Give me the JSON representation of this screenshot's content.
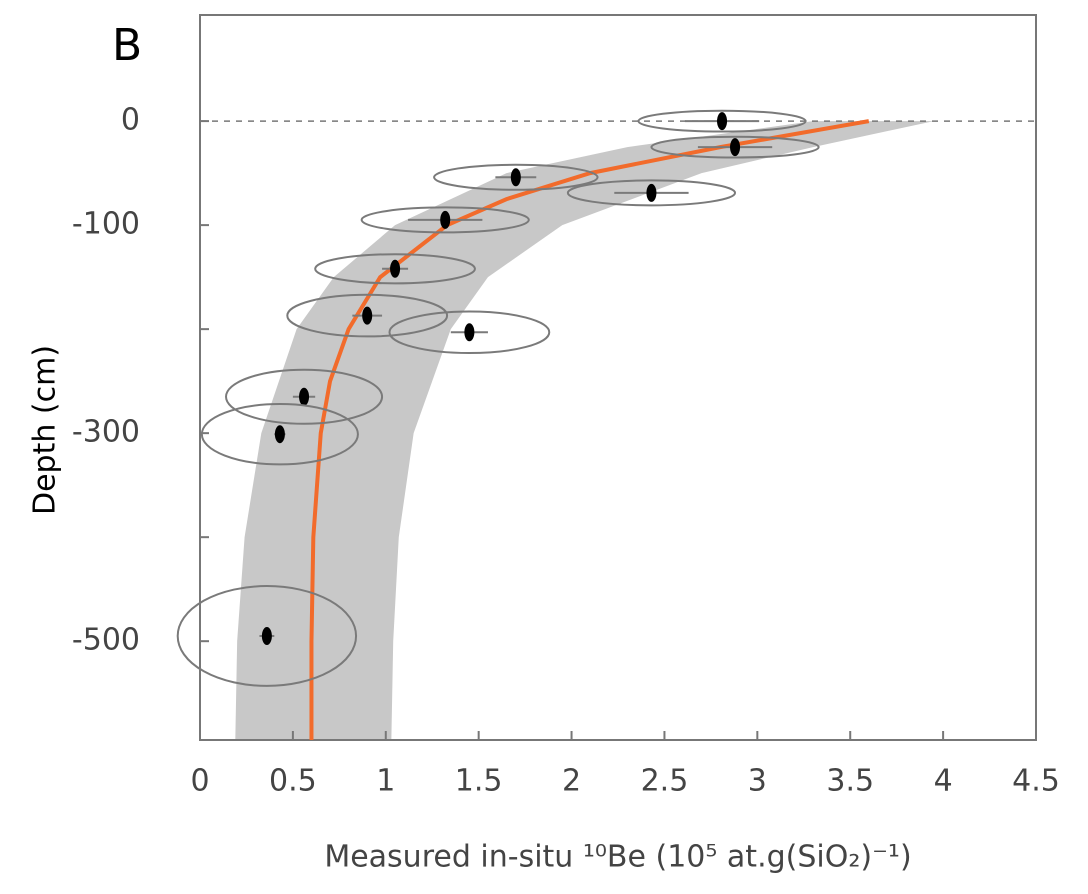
{
  "chart_data": {
    "type": "scatter",
    "title": "B",
    "xlabel": "Measured in-situ ¹⁰Be (10⁵ at.g(SiO₂)⁻¹)",
    "ylabel": "Depth (cm)",
    "xlim": [
      0,
      4.5
    ],
    "ylim": [
      -595,
      102
    ],
    "xticks": [
      0,
      0.5,
      1,
      1.5,
      2,
      2.5,
      3,
      3.5,
      4,
      4.5
    ],
    "yticks": [
      0,
      -100,
      -300,
      -500
    ],
    "yticks_minor": [
      -200,
      -400
    ],
    "points": {
      "x": [
        2.81,
        2.88,
        1.7,
        2.43,
        1.32,
        1.05,
        0.9,
        1.45,
        0.56,
        0.43,
        0.36
      ],
      "y": [
        0,
        -25,
        -54,
        -69,
        -95,
        -142,
        -187,
        -203,
        -265,
        -301,
        -495
      ],
      "x_err": [
        0.45,
        0.45,
        0.44,
        0.45,
        0.45,
        0.43,
        0.43,
        0.43,
        0.42,
        0.42,
        0.48
      ],
      "y_err": [
        10,
        10,
        12,
        12,
        12,
        14,
        20,
        20,
        26,
        29,
        48
      ],
      "x_bar": [
        0.2,
        0.2,
        0.11,
        0.2,
        0.2,
        0.07,
        0.08,
        0.1,
        0.06,
        0.03,
        0.04
      ],
      "color": "#000000",
      "ellipse_color": "#7a7a7a"
    },
    "fit": {
      "depth": [
        0,
        -25,
        -50,
        -75,
        -100,
        -150,
        -200,
        -250,
        -300,
        -400,
        -500,
        -595
      ],
      "x": [
        3.6,
        2.8,
        2.1,
        1.65,
        1.33,
        0.97,
        0.8,
        0.7,
        0.65,
        0.61,
        0.6,
        0.6
      ],
      "color": "#f26b2b"
    },
    "band": {
      "depth": [
        0,
        -25,
        -50,
        -100,
        -150,
        -200,
        -300,
        -400,
        -500,
        -595
      ],
      "lower": [
        3.3,
        2.3,
        1.65,
        1.05,
        0.72,
        0.52,
        0.33,
        0.24,
        0.2,
        0.19
      ],
      "upper": [
        3.95,
        3.3,
        2.7,
        1.95,
        1.55,
        1.35,
        1.15,
        1.07,
        1.04,
        1.03
      ],
      "color": "#c8c8c8"
    },
    "zero_line": 0
  }
}
